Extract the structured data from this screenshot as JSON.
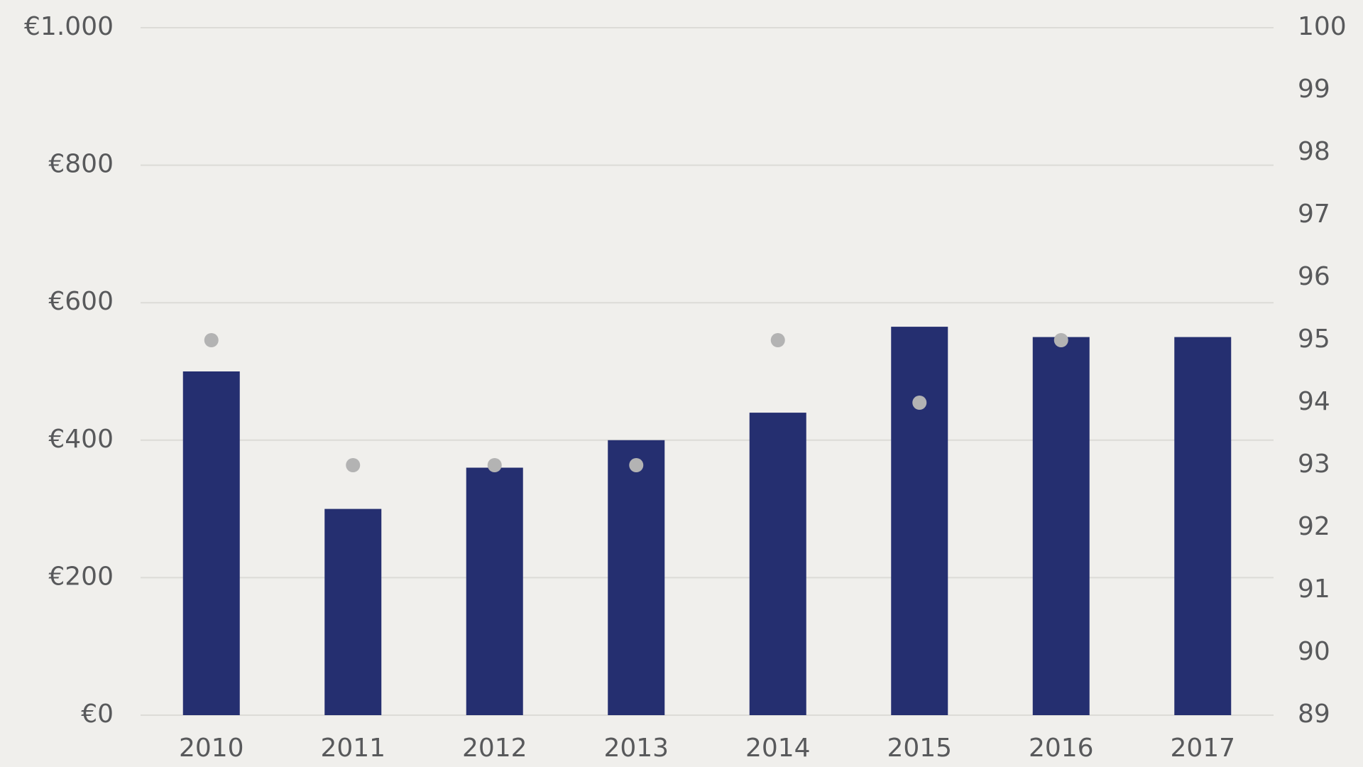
{
  "chart_data": {
    "type": "bar",
    "categories": [
      "2010",
      "2011",
      "2012",
      "2013",
      "2014",
      "2015",
      "2016",
      "2017"
    ],
    "series": [
      {
        "color": "#252f70",
        "values": [
          500,
          300,
          360,
          400,
          440,
          565,
          550,
          550
        ]
      },
      {
        "type": "scatter",
        "axis": "y2",
        "color": "#b3b3b3",
        "values": [
          95,
          93,
          93,
          93,
          95,
          94,
          95,
          null
        ]
      }
    ],
    "ylim": [
      0,
      1000
    ],
    "yticks": [
      {
        "value": 0,
        "label": "€0"
      },
      {
        "value": 200,
        "label": "€200"
      },
      {
        "value": 400,
        "label": "€400"
      },
      {
        "value": 600,
        "label": "€600"
      },
      {
        "value": 800,
        "label": "€800"
      },
      {
        "value": 1000,
        "label": "€1.000"
      }
    ],
    "y2lim": [
      89,
      100
    ],
    "y2ticks": [
      89,
      90,
      91,
      92,
      93,
      94,
      95,
      96,
      97,
      98,
      99,
      100
    ],
    "grid": true
  }
}
